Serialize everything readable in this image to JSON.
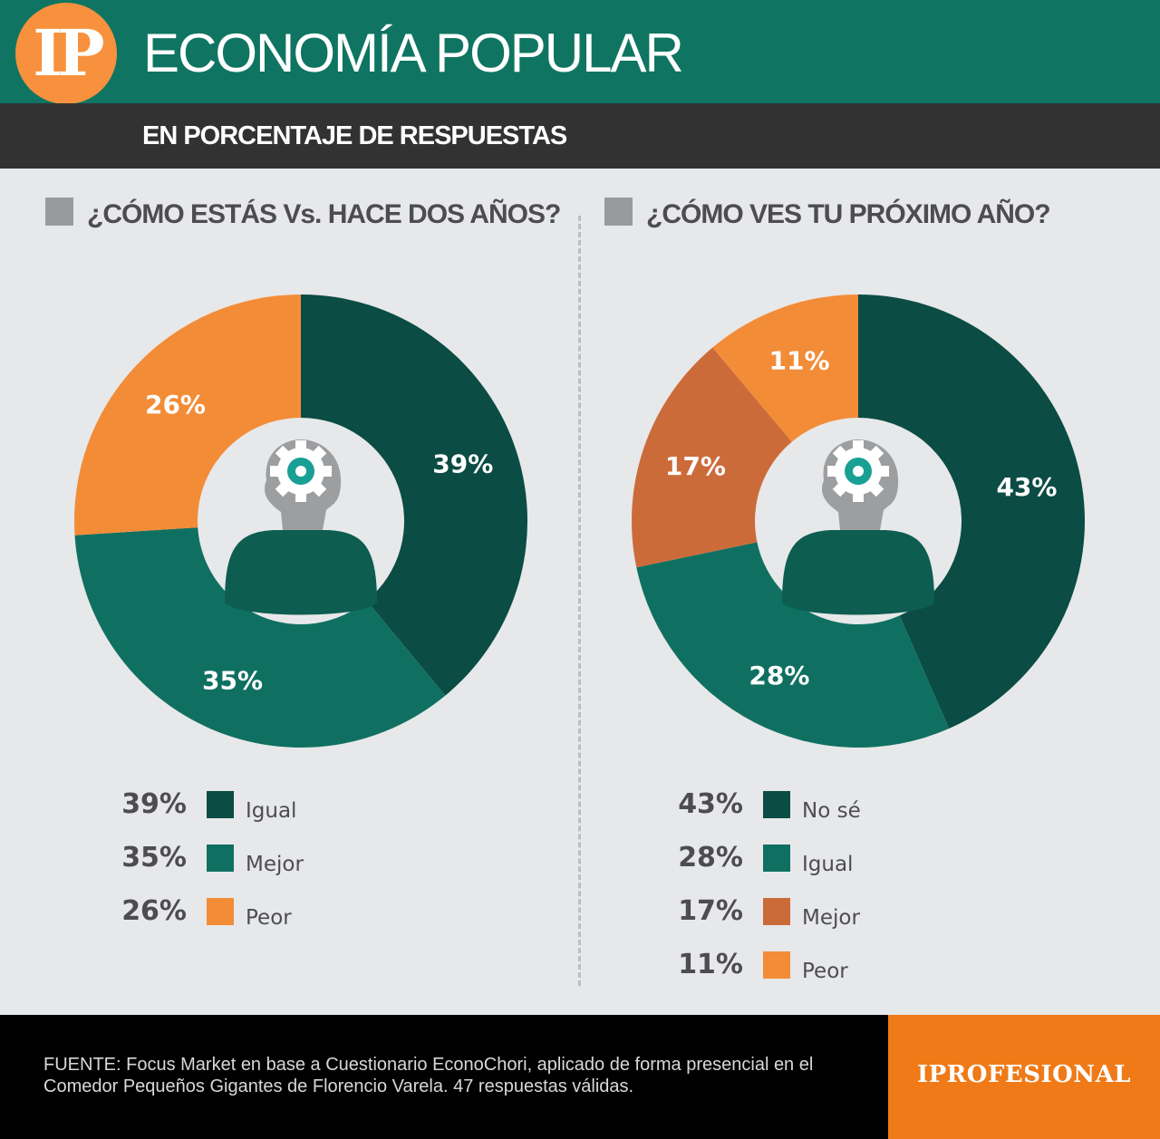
{
  "header": {
    "logo_text": "IP",
    "title": "ECONOMÍA POPULAR",
    "subtitle": "EN PORCENTAJE DE RESPUESTAS"
  },
  "colors": {
    "dark_green": "#0b4c44",
    "green": "#0f7061",
    "dark_orange": "#cc6b3a",
    "orange": "#f38c37",
    "header_green": "#0f7562",
    "brand_orange": "#ef7a17"
  },
  "chart_data": [
    {
      "type": "pie",
      "title": "¿CÓMO ESTÁS Vs. HACE DOS AÑOS?",
      "categories": [
        "Igual",
        "Mejor",
        "Peor"
      ],
      "values": [
        39,
        35,
        26
      ],
      "labels": [
        "39%",
        "35%",
        "26%"
      ],
      "colors": [
        "#0b4c44",
        "#0f7061",
        "#f38c37"
      ]
    },
    {
      "type": "pie",
      "title": "¿CÓMO VES TU PRÓXIMO AÑO?",
      "categories": [
        "No sé",
        "Igual",
        "Mejor",
        "Peor"
      ],
      "values": [
        43,
        28,
        17,
        11
      ],
      "labels": [
        "43%",
        "28%",
        "17%",
        "11%"
      ],
      "colors": [
        "#0b4c44",
        "#0f7061",
        "#cc6b3a",
        "#f38c37"
      ]
    }
  ],
  "footer": {
    "source": "FUENTE: Focus Market en base a Cuestionario EconoChori, aplicado de forma presencial en el Comedor Pequeños Gigantes de Florencio Varela. 47 respuestas válidas.",
    "brand": "IPROFESIONAL"
  }
}
